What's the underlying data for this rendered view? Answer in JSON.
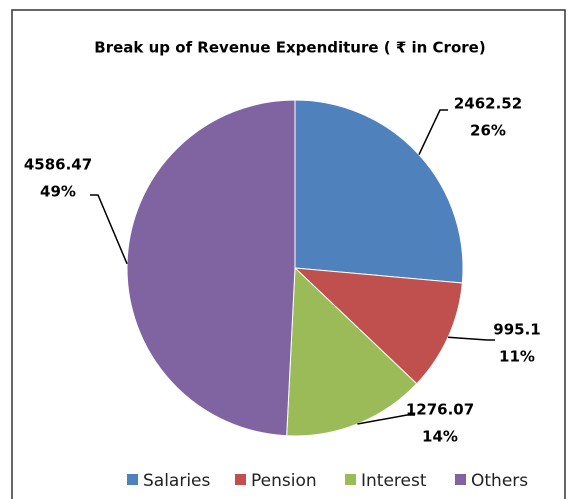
{
  "chart_data": {
    "type": "pie",
    "title": "Break up of Revenue Expenditure ( ₹ in Crore)",
    "categories": [
      "Salaries",
      "Pension",
      "Interest",
      "Others"
    ],
    "values": [
      2462.52,
      995.1,
      1276.07,
      4586.47
    ],
    "percent_labels": [
      "26%",
      "11%",
      "14%",
      "49%"
    ],
    "colors": [
      "#4f81bd",
      "#c0504d",
      "#9bbb59",
      "#8064a2"
    ],
    "legend": "bottom"
  }
}
